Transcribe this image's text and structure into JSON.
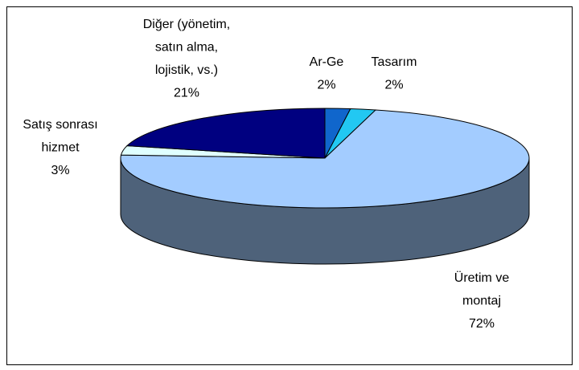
{
  "chart_data": {
    "type": "pie",
    "categories": [
      [
        "Ar-Ge"
      ],
      [
        "Tasarım"
      ],
      [
        "Üretim ve",
        "montaj"
      ],
      [
        "Satış sonrası",
        "hizmet"
      ],
      [
        "Diğer (yönetim,",
        "satın alma,",
        "lojistik, vs.)"
      ]
    ],
    "values": [
      2,
      2,
      72,
      3,
      21
    ],
    "value_labels": [
      "2%",
      "2%",
      "72%",
      "3%",
      "21%"
    ],
    "colors": [
      "#1066cc",
      "#22c8f2",
      "#a3ccff",
      "#e0ffff",
      "#000080"
    ]
  }
}
